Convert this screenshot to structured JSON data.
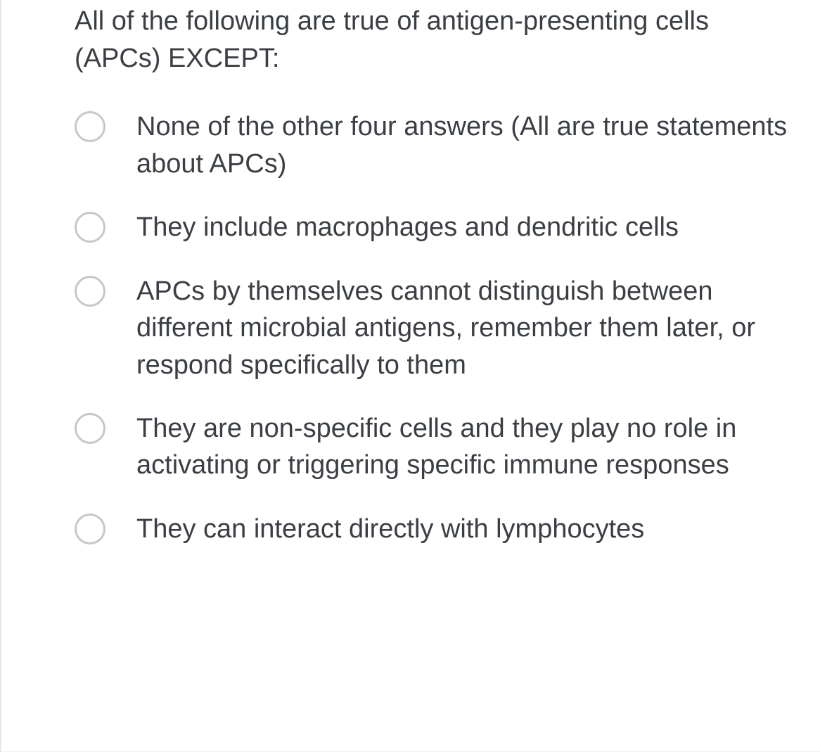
{
  "question": {
    "text": "All of the following are true of antigen-presenting cells (APCs) EXCEPT:"
  },
  "options": [
    {
      "label": "None of the other four answers (All are true statements about APCs)"
    },
    {
      "label": "They include macrophages and dendritic cells"
    },
    {
      "label": "APCs by themselves cannot distinguish between different microbial antigens, remember them later, or respond specifically to them"
    },
    {
      "label": "They are non-specific cells and they play no role in activating or triggering specific immune responses"
    },
    {
      "label": "They can interact directly with lymphocytes"
    }
  ],
  "colors": {
    "text": "#3b3f44",
    "radio_border": "#c5c8cb",
    "container_border": "#e8e8e8",
    "background": "#ffffff"
  },
  "typography": {
    "font_family": "Arial, Helvetica, sans-serif",
    "question_fontsize": 38,
    "option_fontsize": 38
  }
}
